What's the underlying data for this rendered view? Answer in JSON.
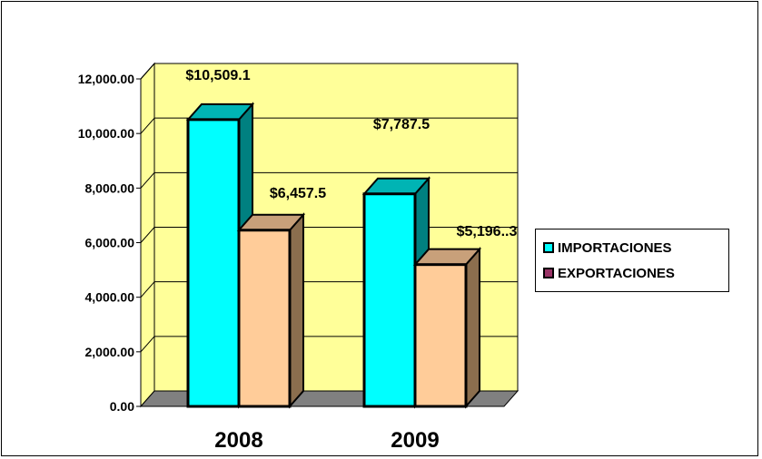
{
  "chart_data": {
    "type": "bar",
    "categories": [
      "2008",
      "2009"
    ],
    "series": [
      {
        "name": "IMPORTACIONES",
        "values": [
          10509.1,
          7787.5
        ],
        "labels": [
          "$10,509.1",
          "$7,787.5"
        ],
        "color": "#00FFFF",
        "side_color": "#008080"
      },
      {
        "name": "EXPORTACIONES",
        "values": [
          6457.5,
          5196.3
        ],
        "labels": [
          "$6,457.5",
          "$5,196..3"
        ],
        "color": "#FFCC99",
        "side_color": "#8B6E4E"
      }
    ],
    "legend_swatch_colors": [
      "#00FFFF",
      "#993366"
    ],
    "yticks": [
      "0.00",
      "2,000.00",
      "4,000.00",
      "6,000.00",
      "8,000.00",
      "10,000.00",
      "12,000.00"
    ],
    "ylim": [
      0,
      12000
    ],
    "grid": true,
    "legend": "right",
    "wall_color": "#FFFF99",
    "floor_color": "#808080"
  }
}
